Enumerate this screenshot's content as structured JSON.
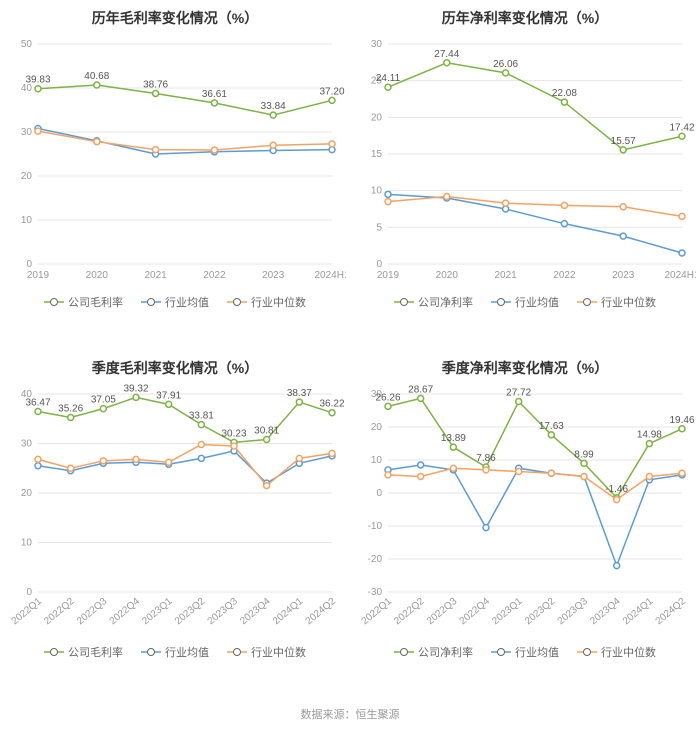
{
  "footer_text": "数据来源：恒生聚源",
  "colors": {
    "series0": "#7cb342",
    "series1": "#5b9bd5",
    "series2": "#f4a261",
    "grid": "#e6e6e6",
    "axis_text": "#999999",
    "title_text": "#333333",
    "bg": "#ffffff"
  },
  "font": {
    "title_size": 14,
    "axis_size": 10,
    "legend_size": 11,
    "data_label_size": 10
  },
  "charts": [
    {
      "id": "chart-top-left",
      "title": "历年毛利率变化情况（%）",
      "type": "line",
      "x_categories": [
        "2019",
        "2020",
        "2021",
        "2022",
        "2023",
        "2024H1"
      ],
      "x_rotate": 0,
      "ylim": [
        0,
        50
      ],
      "ytick_step": 10,
      "legend": [
        "公司毛利率",
        "行业均值",
        "行业中位数"
      ],
      "series": [
        {
          "name": "公司毛利率",
          "color": "#7cb342",
          "values": [
            39.83,
            40.68,
            38.76,
            36.61,
            33.84,
            37.2
          ],
          "labels": [
            "39.83",
            "40.68",
            "38.76",
            "36.61",
            "33.84",
            "37.20"
          ],
          "label_placement": "above"
        },
        {
          "name": "行业均值",
          "color": "#5b9bd5",
          "values": [
            30.8,
            28.0,
            25.0,
            25.5,
            25.8,
            26.0
          ],
          "labels": [],
          "label_placement": "none"
        },
        {
          "name": "行业中位数",
          "color": "#f4a261",
          "values": [
            30.2,
            27.8,
            26.0,
            25.9,
            27.0,
            27.3
          ],
          "labels": [],
          "label_placement": "none"
        }
      ]
    },
    {
      "id": "chart-top-right",
      "title": "历年净利率变化情况（%）",
      "type": "line",
      "x_categories": [
        "2019",
        "2020",
        "2021",
        "2022",
        "2023",
        "2024H1"
      ],
      "x_rotate": 0,
      "ylim": [
        0,
        30
      ],
      "ytick_step": 5,
      "legend": [
        "公司净利率",
        "行业均值",
        "行业中位数"
      ],
      "series": [
        {
          "name": "公司净利率",
          "color": "#7cb342",
          "values": [
            24.11,
            27.44,
            26.06,
            22.08,
            15.57,
            17.42
          ],
          "labels": [
            "24.11",
            "27.44",
            "26.06",
            "22.08",
            "15.57",
            "17.42"
          ],
          "label_placement": "above"
        },
        {
          "name": "行业均值",
          "color": "#5b9bd5",
          "values": [
            9.5,
            9.0,
            7.5,
            5.5,
            3.8,
            1.5
          ],
          "labels": [],
          "label_placement": "none"
        },
        {
          "name": "行业中位数",
          "color": "#f4a261",
          "values": [
            8.5,
            9.2,
            8.3,
            8.0,
            7.8,
            6.5
          ],
          "labels": [],
          "label_placement": "none"
        }
      ]
    },
    {
      "id": "chart-bottom-left",
      "title": "季度毛利率变化情况（%）",
      "type": "line",
      "x_categories": [
        "2022Q1",
        "2022Q2",
        "2022Q3",
        "2022Q4",
        "2023Q1",
        "2023Q2",
        "2023Q3",
        "2023Q4",
        "2024Q1",
        "2024Q2"
      ],
      "x_rotate": -40,
      "ylim": [
        0,
        40
      ],
      "ytick_step": 10,
      "legend": [
        "公司毛利率",
        "行业均值",
        "行业中位数"
      ],
      "series": [
        {
          "name": "公司毛利率",
          "color": "#7cb342",
          "values": [
            36.47,
            35.26,
            37.05,
            39.32,
            37.91,
            33.81,
            30.23,
            30.81,
            38.37,
            36.22
          ],
          "labels": [
            "36.47",
            "35.26",
            "37.05",
            "39.32",
            "37.91",
            "33.81",
            "30.23",
            "30.81",
            "38.37",
            "36.22"
          ],
          "label_placement": "above"
        },
        {
          "name": "行业均值",
          "color": "#5b9bd5",
          "values": [
            25.5,
            24.5,
            26.0,
            26.2,
            25.8,
            27.0,
            28.5,
            22.0,
            26.0,
            27.5
          ],
          "labels": [],
          "label_placement": "none"
        },
        {
          "name": "行业中位数",
          "color": "#f4a261",
          "values": [
            26.8,
            25.0,
            26.5,
            26.8,
            26.2,
            29.8,
            29.5,
            21.5,
            27.0,
            28.0
          ],
          "labels": [],
          "label_placement": "none"
        }
      ]
    },
    {
      "id": "chart-bottom-right",
      "title": "季度净利率变化情况（%）",
      "type": "line",
      "x_categories": [
        "2022Q1",
        "2022Q2",
        "2022Q3",
        "2022Q4",
        "2023Q1",
        "2023Q2",
        "2023Q3",
        "2023Q4",
        "2024Q1",
        "2024Q2"
      ],
      "x_rotate": -40,
      "ylim": [
        -30,
        30
      ],
      "ytick_step": 10,
      "legend": [
        "公司净利率",
        "行业均值",
        "行业中位数"
      ],
      "series": [
        {
          "name": "公司净利率",
          "color": "#7cb342",
          "values": [
            26.26,
            28.67,
            13.89,
            7.86,
            27.72,
            17.63,
            8.99,
            -1.46,
            14.98,
            19.46
          ],
          "labels": [
            "26.26",
            "28.67",
            "13.89",
            "7.86",
            "27.72",
            "17.63",
            "8.99",
            "-1.46",
            "14.98",
            "19.46"
          ],
          "label_placement": "above"
        },
        {
          "name": "行业均值",
          "color": "#5b9bd5",
          "values": [
            7.0,
            8.5,
            7.0,
            -10.5,
            7.5,
            6.0,
            5.0,
            -22.0,
            4.0,
            5.5
          ],
          "labels": [],
          "label_placement": "none"
        },
        {
          "name": "行业中位数",
          "color": "#f4a261",
          "values": [
            5.5,
            5.0,
            7.5,
            7.0,
            6.5,
            6.0,
            5.0,
            -2.0,
            5.0,
            6.0
          ],
          "labels": [],
          "label_placement": "none"
        }
      ]
    }
  ]
}
